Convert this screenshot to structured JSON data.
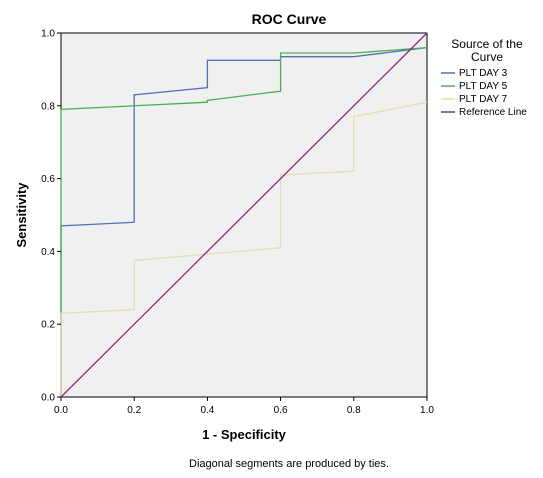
{
  "chart_data": {
    "type": "line",
    "title": "ROC Curve",
    "xlabel": "1 - Specificity",
    "ylabel": "Sensitivity",
    "xlim": [
      0,
      1
    ],
    "ylim": [
      0,
      1
    ],
    "xticks": [
      "0.0",
      "0.2",
      "0.4",
      "0.6",
      "0.8",
      "1.0"
    ],
    "yticks": [
      "0.0",
      "0.2",
      "0.4",
      "0.6",
      "0.8",
      "1.0"
    ],
    "grid": false,
    "plot_background": "#f0f0f0",
    "legend": {
      "title_lines": [
        "Source of the",
        "Curve"
      ],
      "placement": "right"
    },
    "footnote": "Diagonal segments are produced by ties.",
    "series": [
      {
        "name": "PLT DAY 3",
        "color": "#5470b3",
        "points": [
          [
            0,
            0
          ],
          [
            0,
            0.47
          ],
          [
            0.2,
            0.48
          ],
          [
            0.2,
            0.83
          ],
          [
            0.4,
            0.85
          ],
          [
            0.4,
            0.925
          ],
          [
            0.6,
            0.925
          ],
          [
            0.6,
            0.935
          ],
          [
            0.8,
            0.935
          ],
          [
            1,
            0.96
          ]
        ]
      },
      {
        "name": "PLT DAY 5",
        "color": "#4caf50",
        "points": [
          [
            0,
            0
          ],
          [
            0,
            0.79
          ],
          [
            0.4,
            0.81
          ],
          [
            0.4,
            0.815
          ],
          [
            0.6,
            0.84
          ],
          [
            0.6,
            0.945
          ],
          [
            0.8,
            0.945
          ],
          [
            1,
            0.96
          ]
        ]
      },
      {
        "name": "PLT DAY 7",
        "color": "#e3ddb0",
        "points": [
          [
            0,
            0
          ],
          [
            0,
            0.23
          ],
          [
            0.2,
            0.24
          ],
          [
            0.2,
            0.375
          ],
          [
            0.6,
            0.41
          ],
          [
            0.6,
            0.61
          ],
          [
            0.8,
            0.62
          ],
          [
            0.8,
            0.77
          ],
          [
            1,
            0.81
          ]
        ]
      },
      {
        "name": "Reference Line",
        "color": "#8b2a78",
        "points": [
          [
            0,
            0
          ],
          [
            1,
            1
          ]
        ]
      }
    ]
  }
}
